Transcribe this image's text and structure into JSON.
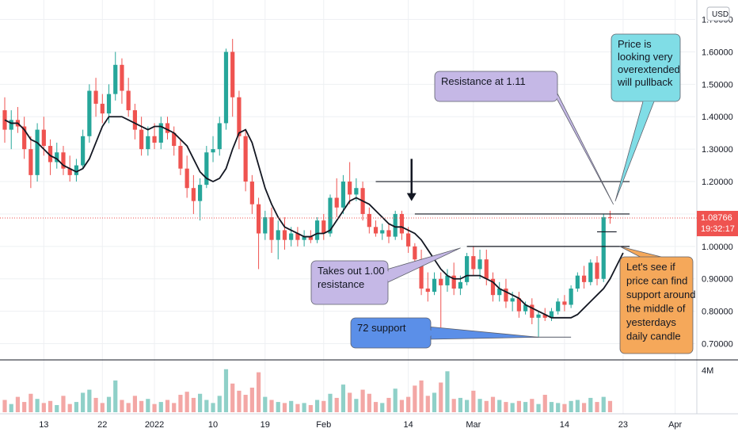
{
  "currency_button": "USD",
  "chart_data": {
    "type": "candlestick",
    "ylim": [
      0.65,
      1.76
    ],
    "y_ticks": [
      "0.70000",
      "0.80000",
      "0.90000",
      "1.00000",
      "1.10000",
      "1.20000",
      "1.30000",
      "1.40000",
      "1.50000",
      "1.60000",
      "1.70000"
    ],
    "x_ticks": [
      "13",
      "22",
      "2022",
      "10",
      "19",
      "Feb",
      "14",
      "Mar",
      "14",
      "23",
      "Apr"
    ],
    "price_label": {
      "price": "1.08766",
      "countdown": "19:32:17",
      "value": 1.08766
    },
    "volume_axis_label": "4M",
    "candles": [
      {
        "o": 1.42,
        "h": 1.46,
        "l": 1.32,
        "c": 1.36
      },
      {
        "o": 1.36,
        "h": 1.42,
        "l": 1.3,
        "c": 1.39
      },
      {
        "o": 1.39,
        "h": 1.43,
        "l": 1.35,
        "c": 1.37
      },
      {
        "o": 1.37,
        "h": 1.4,
        "l": 1.27,
        "c": 1.3
      },
      {
        "o": 1.3,
        "h": 1.34,
        "l": 1.18,
        "c": 1.22
      },
      {
        "o": 1.22,
        "h": 1.38,
        "l": 1.2,
        "c": 1.36
      },
      {
        "o": 1.36,
        "h": 1.4,
        "l": 1.28,
        "c": 1.31
      },
      {
        "o": 1.31,
        "h": 1.33,
        "l": 1.22,
        "c": 1.26
      },
      {
        "o": 1.26,
        "h": 1.32,
        "l": 1.24,
        "c": 1.29
      },
      {
        "o": 1.29,
        "h": 1.31,
        "l": 1.22,
        "c": 1.24
      },
      {
        "o": 1.24,
        "h": 1.28,
        "l": 1.2,
        "c": 1.22
      },
      {
        "o": 1.22,
        "h": 1.27,
        "l": 1.2,
        "c": 1.25
      },
      {
        "o": 1.25,
        "h": 1.36,
        "l": 1.24,
        "c": 1.34
      },
      {
        "o": 1.34,
        "h": 1.5,
        "l": 1.32,
        "c": 1.48
      },
      {
        "o": 1.48,
        "h": 1.52,
        "l": 1.4,
        "c": 1.44
      },
      {
        "o": 1.44,
        "h": 1.47,
        "l": 1.38,
        "c": 1.41
      },
      {
        "o": 1.41,
        "h": 1.5,
        "l": 1.38,
        "c": 1.47
      },
      {
        "o": 1.47,
        "h": 1.6,
        "l": 1.45,
        "c": 1.56
      },
      {
        "o": 1.56,
        "h": 1.58,
        "l": 1.44,
        "c": 1.48
      },
      {
        "o": 1.48,
        "h": 1.52,
        "l": 1.4,
        "c": 1.42
      },
      {
        "o": 1.42,
        "h": 1.44,
        "l": 1.33,
        "c": 1.36
      },
      {
        "o": 1.36,
        "h": 1.4,
        "l": 1.28,
        "c": 1.3
      },
      {
        "o": 1.3,
        "h": 1.37,
        "l": 1.28,
        "c": 1.34
      },
      {
        "o": 1.34,
        "h": 1.38,
        "l": 1.3,
        "c": 1.32
      },
      {
        "o": 1.32,
        "h": 1.4,
        "l": 1.3,
        "c": 1.38
      },
      {
        "o": 1.38,
        "h": 1.4,
        "l": 1.33,
        "c": 1.35
      },
      {
        "o": 1.35,
        "h": 1.37,
        "l": 1.28,
        "c": 1.31
      },
      {
        "o": 1.31,
        "h": 1.33,
        "l": 1.22,
        "c": 1.24
      },
      {
        "o": 1.24,
        "h": 1.28,
        "l": 1.15,
        "c": 1.18
      },
      {
        "o": 1.18,
        "h": 1.22,
        "l": 1.1,
        "c": 1.14
      },
      {
        "o": 1.14,
        "h": 1.21,
        "l": 1.08,
        "c": 1.19
      },
      {
        "o": 1.19,
        "h": 1.31,
        "l": 1.18,
        "c": 1.29
      },
      {
        "o": 1.29,
        "h": 1.34,
        "l": 1.26,
        "c": 1.3
      },
      {
        "o": 1.3,
        "h": 1.4,
        "l": 1.28,
        "c": 1.38
      },
      {
        "o": 1.38,
        "h": 1.61,
        "l": 1.36,
        "c": 1.6
      },
      {
        "o": 1.6,
        "h": 1.64,
        "l": 1.4,
        "c": 1.46
      },
      {
        "o": 1.46,
        "h": 1.48,
        "l": 1.3,
        "c": 1.34
      },
      {
        "o": 1.34,
        "h": 1.36,
        "l": 1.17,
        "c": 1.2
      },
      {
        "o": 1.2,
        "h": 1.22,
        "l": 1.1,
        "c": 1.13
      },
      {
        "o": 1.13,
        "h": 1.15,
        "l": 0.93,
        "c": 1.04
      },
      {
        "o": 1.04,
        "h": 1.11,
        "l": 1.02,
        "c": 1.09
      },
      {
        "o": 1.09,
        "h": 1.12,
        "l": 0.98,
        "c": 1.02
      },
      {
        "o": 1.02,
        "h": 1.08,
        "l": 0.96,
        "c": 1.05
      },
      {
        "o": 1.05,
        "h": 1.09,
        "l": 0.99,
        "c": 1.02
      },
      {
        "o": 1.02,
        "h": 1.06,
        "l": 1.0,
        "c": 1.04
      },
      {
        "o": 1.04,
        "h": 1.06,
        "l": 1.0,
        "c": 1.02
      },
      {
        "o": 1.02,
        "h": 1.05,
        "l": 1.0,
        "c": 1.03
      },
      {
        "o": 1.03,
        "h": 1.05,
        "l": 1.01,
        "c": 1.02
      },
      {
        "o": 1.02,
        "h": 1.09,
        "l": 1.01,
        "c": 1.08
      },
      {
        "o": 1.08,
        "h": 1.1,
        "l": 1.02,
        "c": 1.04
      },
      {
        "o": 1.04,
        "h": 1.16,
        "l": 1.03,
        "c": 1.15
      },
      {
        "o": 1.15,
        "h": 1.21,
        "l": 1.09,
        "c": 1.12
      },
      {
        "o": 1.12,
        "h": 1.22,
        "l": 1.1,
        "c": 1.2
      },
      {
        "o": 1.2,
        "h": 1.26,
        "l": 1.13,
        "c": 1.16
      },
      {
        "o": 1.16,
        "h": 1.21,
        "l": 1.14,
        "c": 1.18
      },
      {
        "o": 1.18,
        "h": 1.2,
        "l": 1.08,
        "c": 1.1
      },
      {
        "o": 1.1,
        "h": 1.12,
        "l": 1.04,
        "c": 1.06
      },
      {
        "o": 1.06,
        "h": 1.08,
        "l": 1.03,
        "c": 1.04
      },
      {
        "o": 1.04,
        "h": 1.07,
        "l": 1.02,
        "c": 1.05
      },
      {
        "o": 1.05,
        "h": 1.07,
        "l": 1.01,
        "c": 1.03
      },
      {
        "o": 1.03,
        "h": 1.11,
        "l": 1.02,
        "c": 1.1
      },
      {
        "o": 1.1,
        "h": 1.11,
        "l": 1.02,
        "c": 1.04
      },
      {
        "o": 1.04,
        "h": 1.06,
        "l": 0.98,
        "c": 1.0
      },
      {
        "o": 1.0,
        "h": 1.01,
        "l": 0.93,
        "c": 0.96
      },
      {
        "o": 0.96,
        "h": 0.99,
        "l": 0.85,
        "c": 0.87
      },
      {
        "o": 0.87,
        "h": 0.92,
        "l": 0.83,
        "c": 0.86
      },
      {
        "o": 0.86,
        "h": 0.92,
        "l": 0.85,
        "c": 0.9
      },
      {
        "o": 0.9,
        "h": 0.92,
        "l": 0.75,
        "c": 0.88
      },
      {
        "o": 0.88,
        "h": 0.93,
        "l": 0.86,
        "c": 0.91
      },
      {
        "o": 0.91,
        "h": 0.95,
        "l": 0.85,
        "c": 0.87
      },
      {
        "o": 0.87,
        "h": 0.91,
        "l": 0.85,
        "c": 0.89
      },
      {
        "o": 0.89,
        "h": 0.98,
        "l": 0.88,
        "c": 0.97
      },
      {
        "o": 0.97,
        "h": 1.0,
        "l": 0.91,
        "c": 0.93
      },
      {
        "o": 0.93,
        "h": 0.99,
        "l": 0.9,
        "c": 0.96
      },
      {
        "o": 0.96,
        "h": 0.99,
        "l": 0.88,
        "c": 0.9
      },
      {
        "o": 0.9,
        "h": 0.92,
        "l": 0.83,
        "c": 0.85
      },
      {
        "o": 0.85,
        "h": 0.89,
        "l": 0.83,
        "c": 0.87
      },
      {
        "o": 0.87,
        "h": 0.9,
        "l": 0.81,
        "c": 0.83
      },
      {
        "o": 0.83,
        "h": 0.86,
        "l": 0.8,
        "c": 0.84
      },
      {
        "o": 0.84,
        "h": 0.86,
        "l": 0.78,
        "c": 0.8
      },
      {
        "o": 0.8,
        "h": 0.83,
        "l": 0.79,
        "c": 0.82
      },
      {
        "o": 0.82,
        "h": 0.84,
        "l": 0.76,
        "c": 0.78
      },
      {
        "o": 0.78,
        "h": 0.8,
        "l": 0.72,
        "c": 0.79
      },
      {
        "o": 0.79,
        "h": 0.81,
        "l": 0.77,
        "c": 0.78
      },
      {
        "o": 0.78,
        "h": 0.81,
        "l": 0.77,
        "c": 0.8
      },
      {
        "o": 0.8,
        "h": 0.84,
        "l": 0.79,
        "c": 0.83
      },
      {
        "o": 0.83,
        "h": 0.85,
        "l": 0.8,
        "c": 0.82
      },
      {
        "o": 0.82,
        "h": 0.88,
        "l": 0.81,
        "c": 0.87
      },
      {
        "o": 0.87,
        "h": 0.92,
        "l": 0.86,
        "c": 0.91
      },
      {
        "o": 0.91,
        "h": 0.94,
        "l": 0.87,
        "c": 0.89
      },
      {
        "o": 0.89,
        "h": 0.96,
        "l": 0.88,
        "c": 0.95
      },
      {
        "o": 0.95,
        "h": 0.97,
        "l": 0.88,
        "c": 0.9
      },
      {
        "o": 0.9,
        "h": 1.1,
        "l": 0.89,
        "c": 1.09
      },
      {
        "o": 1.09,
        "h": 1.11,
        "l": 1.07,
        "c": 1.08766
      }
    ],
    "moving_average": [
      1.39,
      1.38,
      1.38,
      1.36,
      1.33,
      1.32,
      1.3,
      1.28,
      1.27,
      1.25,
      1.24,
      1.23,
      1.24,
      1.27,
      1.32,
      1.37,
      1.4,
      1.4,
      1.4,
      1.39,
      1.38,
      1.37,
      1.36,
      1.37,
      1.37,
      1.36,
      1.35,
      1.33,
      1.31,
      1.27,
      1.23,
      1.21,
      1.2,
      1.21,
      1.24,
      1.3,
      1.35,
      1.36,
      1.32,
      1.25,
      1.18,
      1.13,
      1.09,
      1.06,
      1.05,
      1.04,
      1.03,
      1.03,
      1.04,
      1.04,
      1.05,
      1.08,
      1.11,
      1.14,
      1.15,
      1.14,
      1.13,
      1.11,
      1.09,
      1.07,
      1.06,
      1.06,
      1.05,
      1.04,
      1.02,
      0.99,
      0.96,
      0.93,
      0.91,
      0.9,
      0.9,
      0.91,
      0.91,
      0.91,
      0.9,
      0.89,
      0.87,
      0.86,
      0.85,
      0.84,
      0.82,
      0.81,
      0.8,
      0.79,
      0.78,
      0.78,
      0.78,
      0.78,
      0.79,
      0.81,
      0.83,
      0.85,
      0.87,
      0.9,
      0.94,
      0.98
    ],
    "volume": [
      1.2,
      0.8,
      1.5,
      1.0,
      1.8,
      1.3,
      0.9,
      1.1,
      0.7,
      1.6,
      0.8,
      1.0,
      1.9,
      2.2,
      1.4,
      0.9,
      1.5,
      3.1,
      1.2,
      0.9,
      1.6,
      1.1,
      1.3,
      0.8,
      1.0,
      1.2,
      0.9,
      1.7,
      2.0,
      1.4,
      1.8,
      1.2,
      0.9,
      1.6,
      4.2,
      2.8,
      2.1,
      1.7,
      2.4,
      3.9,
      1.5,
      1.2,
      1.0,
      0.9,
      1.1,
      0.8,
      0.9,
      0.7,
      1.2,
      1.1,
      1.8,
      1.4,
      2.7,
      1.9,
      1.3,
      2.2,
      1.8,
      1.0,
      0.9,
      1.4,
      2.3,
      1.2,
      1.5,
      2.6,
      3.1,
      1.6,
      1.9,
      2.9,
      4.0,
      1.3,
      1.4,
      1.2,
      2.1,
      1.3,
      1.1,
      1.5,
      1.2,
      1.0,
      0.9,
      1.1,
      1.0,
      1.3,
      0.8,
      1.7,
      1.0,
      0.9,
      0.8,
      1.1,
      1.2,
      0.9,
      1.4,
      1.0,
      1.5,
      1.1,
      3.3,
      1.4
    ],
    "volume_max": 4.8,
    "horizontal_lines": [
      {
        "y": 1.2,
        "x_start": 57,
        "x_end": 96
      },
      {
        "y": 1.1,
        "x_start": 63,
        "x_end": 96
      },
      {
        "y": 1.0,
        "x_start": 71,
        "x_end": 96
      },
      {
        "y": 1.045,
        "x_start": 91,
        "x_end": 94
      },
      {
        "y": 0.72,
        "x_start": 76,
        "x_end": 87
      }
    ],
    "arrow": {
      "x": 62.5,
      "y_top": 1.27,
      "y_tip": 1.14
    },
    "annotations": [
      {
        "text": [
          "Resistance at 1.11"
        ],
        "color": "#c5b8e6",
        "anchor": {
          "x": 93.5,
          "y": 1.13
        }
      },
      {
        "text": [
          "Price is",
          "looking very",
          "overextended",
          "will pullback"
        ],
        "color": "#80dde6",
        "anchor": {
          "x": 93.8,
          "y": 1.14
        }
      },
      {
        "text": [
          "Takes out 1.00",
          "resistance"
        ],
        "color": "#c5b8e6",
        "anchor": {
          "x": 70,
          "y": 0.995
        }
      },
      {
        "text": [
          "72 support"
        ],
        "color": "#5b8fe8",
        "anchor": {
          "x": 82,
          "y": 0.72
        }
      },
      {
        "text": [
          "Let's see if",
          "price can find",
          "support around",
          "the middle of",
          "yesterdays",
          "daily candle"
        ],
        "color": "#f5a85a",
        "anchor": {
          "x": 94.5,
          "y": 1.0
        }
      }
    ],
    "colors": {
      "up": "#26a69a",
      "down": "#ef5350",
      "ma": "#131722",
      "vol_up": "#8fd0c8",
      "vol_down": "#f3a7a5",
      "grid": "#eef0f3"
    }
  }
}
